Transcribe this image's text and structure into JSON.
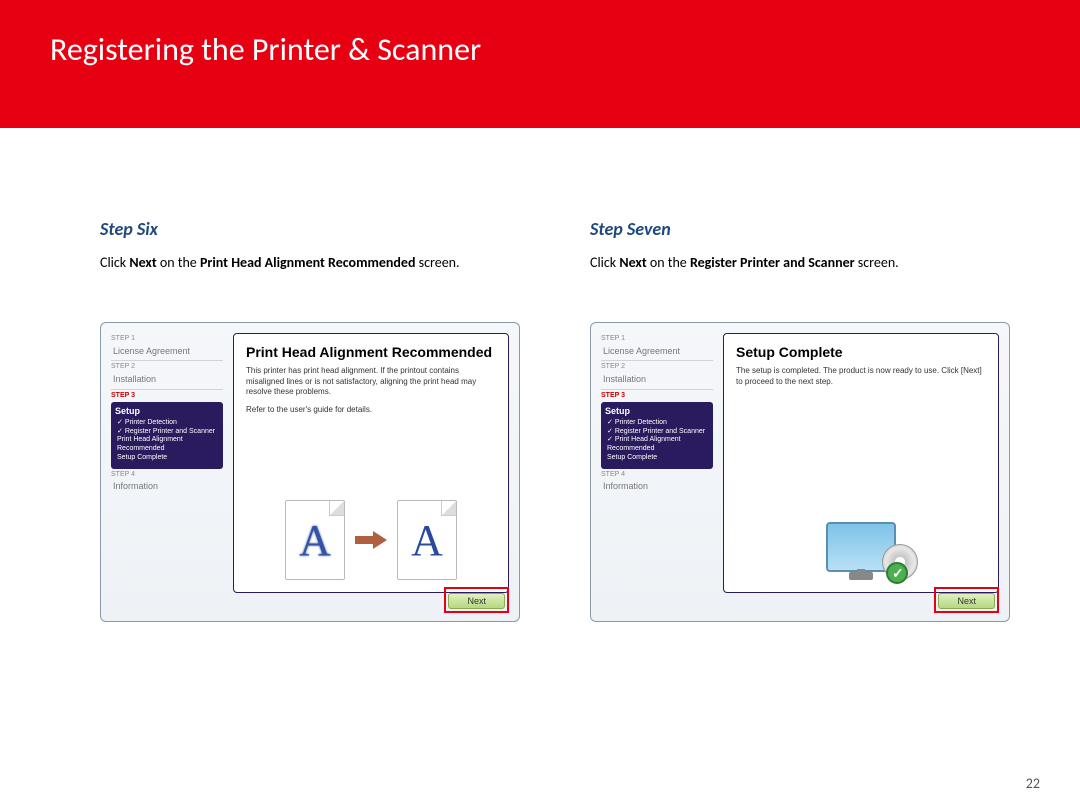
{
  "banner": {
    "title": "Registering the Printer & Scanner"
  },
  "left": {
    "heading": "Step Six",
    "desc_pre": "Click ",
    "desc_b1": "Next",
    "desc_mid": " on the ",
    "desc_b2": "Print Head Alignment Recommended",
    "desc_post": " screen.",
    "panel_title": "Print Head Alignment Recommended",
    "panel_text": "This printer has print head alignment. If the printout contains misaligned lines or is not satisfactory, aligning the print head may resolve these problems.",
    "panel_text2": "Refer to the user's guide for details.",
    "letter": "A"
  },
  "right": {
    "heading": "Step Seven",
    "desc_pre": "Click ",
    "desc_b1": "Next",
    "desc_mid": " on the ",
    "desc_b2": "Register Printer and Scanner",
    "desc_post": " screen.",
    "panel_title": "Setup Complete",
    "panel_text": "The setup is completed. The product is now ready to use. Click [Next] to proceed to the next step."
  },
  "sidebar": {
    "s1": "STEP 1",
    "s1_item": "License Agreement",
    "s2": "STEP 2",
    "s2_item": "Installation",
    "s3": "STEP 3",
    "setup": "Setup",
    "sub1": "Printer Detection",
    "sub2": "Register Printer and Scanner",
    "sub3": "Print Head Alignment Recommended",
    "sub4": "Setup Complete",
    "s4": "STEP 4",
    "s4_item": "Information"
  },
  "next_label": "Next",
  "page_number": "22",
  "colors": {
    "brand_red": "#e60012",
    "heading_blue": "#1f497d",
    "wizard_purple": "#2a1a5e"
  }
}
